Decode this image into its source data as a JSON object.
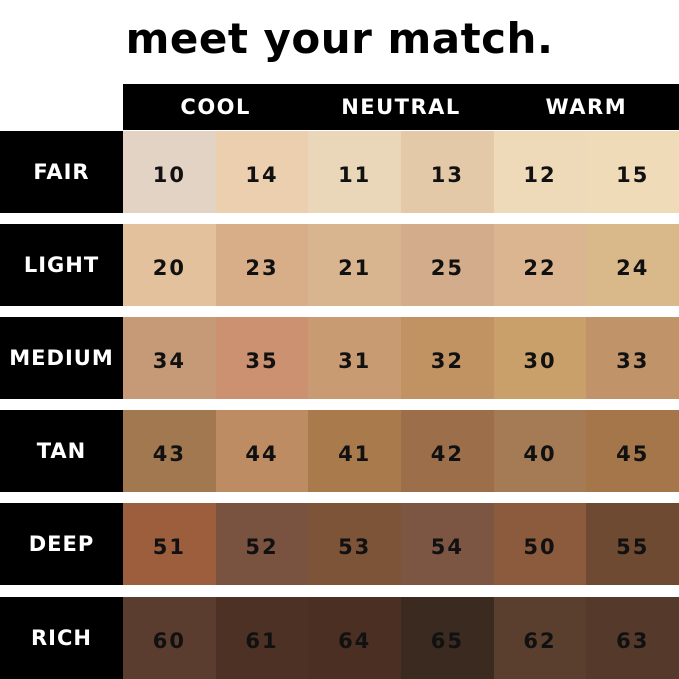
{
  "title": "meet your match.",
  "undertones": [
    "COOL",
    "NEUTRAL",
    "WARM"
  ],
  "rows": [
    {
      "label": "FAIR",
      "shades": [
        {
          "code": "10",
          "color": "#e3d3c5"
        },
        {
          "code": "14",
          "color": "#ebcfaf"
        },
        {
          "code": "11",
          "color": "#ead6b9"
        },
        {
          "code": "13",
          "color": "#e4c9a8"
        },
        {
          "code": "12",
          "color": "#eed9b9"
        },
        {
          "code": "15",
          "color": "#efdbb8"
        }
      ]
    },
    {
      "label": "LIGHT",
      "shades": [
        {
          "code": "20",
          "color": "#e2c19c"
        },
        {
          "code": "23",
          "color": "#d7ae88"
        },
        {
          "code": "21",
          "color": "#d8b48f"
        },
        {
          "code": "25",
          "color": "#d3ad8b"
        },
        {
          "code": "22",
          "color": "#dbb58f"
        },
        {
          "code": "24",
          "color": "#d9b88a"
        }
      ]
    },
    {
      "label": "MEDIUM",
      "shades": [
        {
          "code": "34",
          "color": "#c79a77"
        },
        {
          "code": "35",
          "color": "#cb9170"
        },
        {
          "code": "31",
          "color": "#c99b73"
        },
        {
          "code": "32",
          "color": "#c19363"
        },
        {
          "code": "30",
          "color": "#c9a06a"
        },
        {
          "code": "33",
          "color": "#c09468"
        }
      ]
    },
    {
      "label": "TAN",
      "shades": [
        {
          "code": "43",
          "color": "#a27850"
        },
        {
          "code": "44",
          "color": "#be8c62"
        },
        {
          "code": "41",
          "color": "#a87a4c"
        },
        {
          "code": "42",
          "color": "#9c6e4a"
        },
        {
          "code": "40",
          "color": "#a47b54"
        },
        {
          "code": "45",
          "color": "#a6764b"
        }
      ]
    },
    {
      "label": "DEEP",
      "shades": [
        {
          "code": "51",
          "color": "#9c5e3c"
        },
        {
          "code": "52",
          "color": "#7a5340"
        },
        {
          "code": "53",
          "color": "#7d5438"
        },
        {
          "code": "54",
          "color": "#7c5642"
        },
        {
          "code": "50",
          "color": "#8c5a3c"
        },
        {
          "code": "55",
          "color": "#6f4a32"
        }
      ]
    },
    {
      "label": "RICH",
      "shades": [
        {
          "code": "60",
          "color": "#5a3d2e"
        },
        {
          "code": "61",
          "color": "#4c3124"
        },
        {
          "code": "64",
          "color": "#4a2f22"
        },
        {
          "code": "65",
          "color": "#3b2a1f"
        },
        {
          "code": "62",
          "color": "#5a3f2f"
        },
        {
          "code": "63",
          "color": "#553a2c"
        }
      ]
    }
  ]
}
